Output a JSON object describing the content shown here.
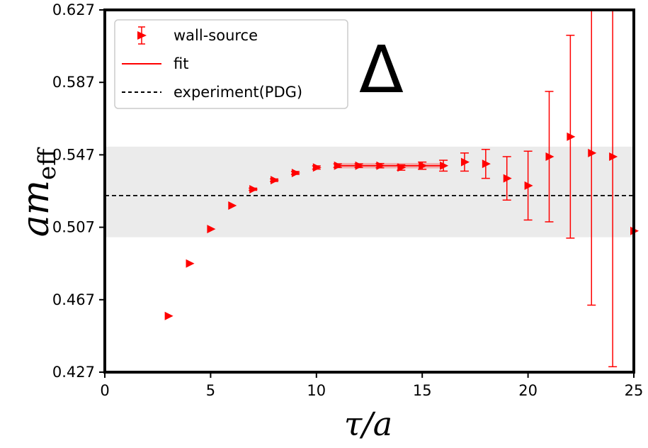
{
  "chart_data": {
    "type": "scatter",
    "xlabel": "τ/a",
    "ylabel_main": "am",
    "ylabel_sub": "eff",
    "annotation": "Δ",
    "xlim": [
      0,
      25
    ],
    "ylim": [
      0.427,
      0.627
    ],
    "xticks": [
      0,
      5,
      10,
      15,
      20,
      25
    ],
    "yticks": [
      0.427,
      0.467,
      0.507,
      0.547,
      0.587,
      0.627
    ],
    "xtick_labels": [
      "0",
      "5",
      "10",
      "15",
      "20",
      "25"
    ],
    "ytick_labels": [
      "0.427",
      "0.467",
      "0.507",
      "0.547",
      "0.587",
      "0.627"
    ],
    "colors": {
      "series": "#ff0000",
      "band": "#ebebeb",
      "experiment": "#000000",
      "frame": "#000000"
    },
    "legend": {
      "placement": "top-left",
      "entries": [
        {
          "label": "wall-source",
          "marker": "triangle-right-errorbar"
        },
        {
          "label": "fit",
          "marker": "solid-line"
        },
        {
          "label": "experiment(PDG)",
          "marker": "dashed-line"
        }
      ]
    },
    "series": [
      {
        "name": "wall-source",
        "x": [
          3,
          4,
          5,
          6,
          7,
          8,
          9,
          10,
          11,
          12,
          13,
          14,
          15,
          16,
          17,
          18,
          19,
          20,
          21,
          22,
          23,
          24,
          25
        ],
        "y": [
          0.458,
          0.487,
          0.506,
          0.519,
          0.528,
          0.533,
          0.537,
          0.54,
          0.541,
          0.541,
          0.541,
          0.54,
          0.541,
          0.541,
          0.543,
          0.542,
          0.534,
          0.53,
          0.546,
          0.557,
          0.548,
          0.546,
          0.505
        ],
        "yerr": [
          0.0005,
          0.0005,
          0.0005,
          0.0005,
          0.0006,
          0.0007,
          0.0008,
          0.0009,
          0.001,
          0.001,
          0.0012,
          0.0015,
          0.002,
          0.003,
          0.005,
          0.008,
          0.012,
          0.019,
          0.036,
          0.056,
          0.084,
          0.116,
          0.0
        ]
      }
    ],
    "fit": {
      "x_range": [
        11,
        16
      ],
      "value": 0.541,
      "err": 0.0015
    },
    "experiment": {
      "value": 0.5245,
      "band": [
        0.5015,
        0.5515
      ]
    }
  }
}
